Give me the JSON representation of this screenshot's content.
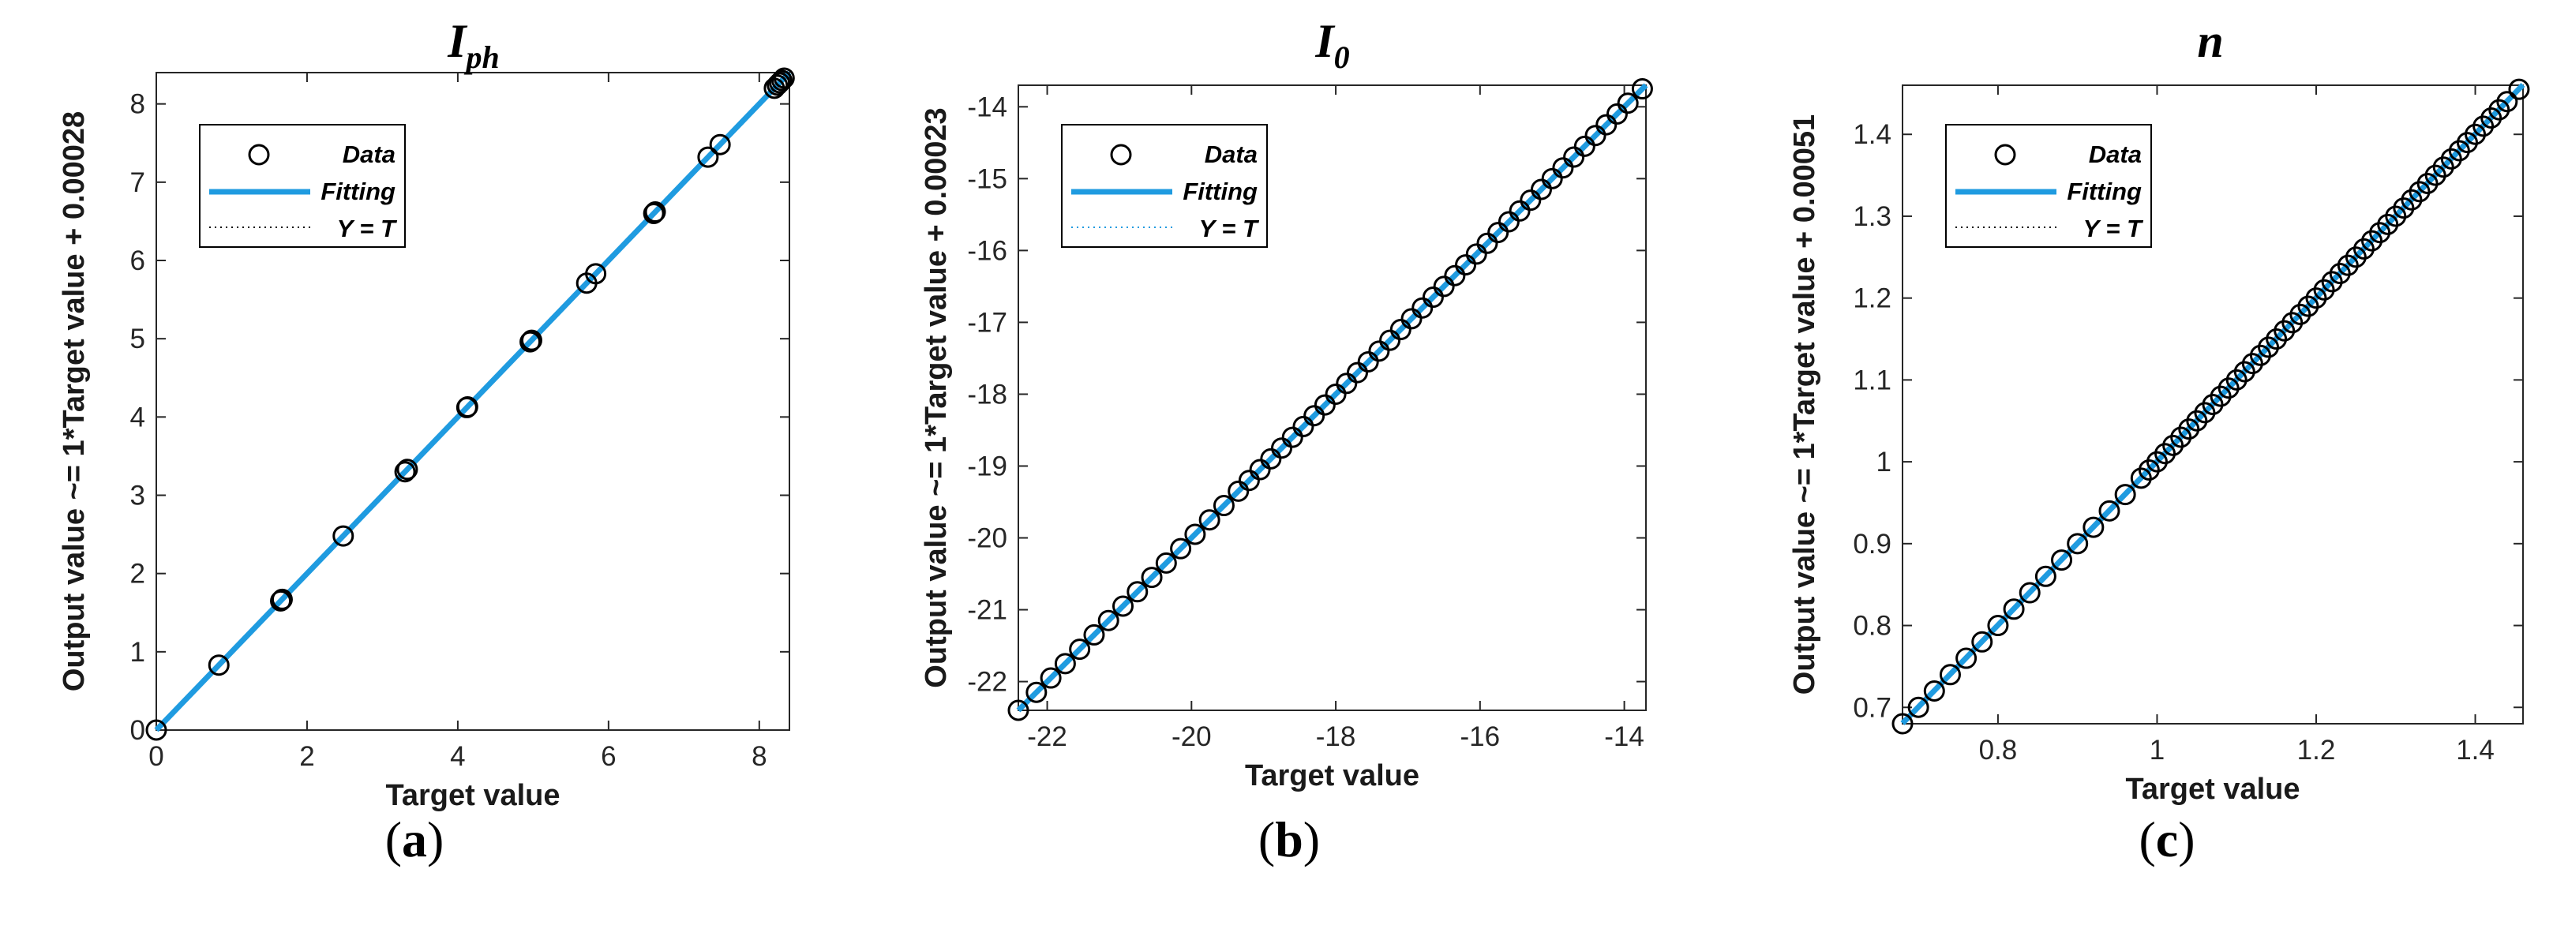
{
  "colors": {
    "fit": "#1f9be0",
    "marker": "#000000",
    "axis": "#262626"
  },
  "chart_data": [
    {
      "type": "scatter",
      "panel": "(a)",
      "panel_letter": "a",
      "title": "I",
      "title_sub": "ph",
      "xlabel": "Target value",
      "ylabel": "Output value ~= 1*Target value + 0.00028",
      "xlim": [
        0,
        8.4
      ],
      "ylim": [
        0,
        8.4
      ],
      "xticks": [
        0,
        2,
        4,
        6,
        8
      ],
      "yticks": [
        0,
        1,
        2,
        3,
        4,
        5,
        6,
        7,
        8
      ],
      "legend": [
        "Data",
        "Fitting",
        "Y = T"
      ],
      "legend_position": "top-left",
      "fit": {
        "slope": 1,
        "intercept": 0.00028
      },
      "x": [
        0,
        0.83,
        1.65,
        1.67,
        2.48,
        3.3,
        3.33,
        4.12,
        4.13,
        4.96,
        4.98,
        5.71,
        5.83,
        6.6,
        6.62,
        7.32,
        7.48,
        8.2,
        8.24,
        8.27,
        8.3,
        8.33
      ],
      "y": [
        0,
        0.83,
        1.65,
        1.67,
        2.48,
        3.3,
        3.33,
        4.12,
        4.13,
        4.96,
        4.98,
        5.71,
        5.83,
        6.6,
        6.62,
        7.32,
        7.48,
        8.2,
        8.24,
        8.27,
        8.3,
        8.33
      ]
    },
    {
      "type": "scatter",
      "panel": "(b)",
      "panel_letter": "b",
      "title": "I",
      "title_sub": "0",
      "xlabel": "Target value",
      "ylabel": "Output value ~= 1*Target value + 0.00023",
      "xlim": [
        -22.4,
        -13.7
      ],
      "ylim": [
        -22.4,
        -13.7
      ],
      "xticks": [
        -22,
        -20,
        -18,
        -16,
        -14
      ],
      "yticks": [
        -22,
        -21,
        -20,
        -19,
        -18,
        -17,
        -16,
        -15,
        -14
      ],
      "legend": [
        "Data",
        "Fitting",
        "Y = T"
      ],
      "legend_position": "top-left",
      "fit": {
        "slope": 1,
        "intercept": 0.00023
      },
      "x": [
        -22.4,
        -22.15,
        -21.95,
        -21.75,
        -21.55,
        -21.35,
        -21.15,
        -20.95,
        -20.75,
        -20.55,
        -20.35,
        -20.15,
        -19.95,
        -19.75,
        -19.55,
        -19.35,
        -19.2,
        -19.05,
        -18.9,
        -18.75,
        -18.6,
        -18.45,
        -18.3,
        -18.15,
        -18.0,
        -17.85,
        -17.7,
        -17.55,
        -17.4,
        -17.25,
        -17.1,
        -16.95,
        -16.8,
        -16.65,
        -16.5,
        -16.35,
        -16.2,
        -16.05,
        -15.9,
        -15.75,
        -15.6,
        -15.45,
        -15.3,
        -15.15,
        -15.0,
        -14.85,
        -14.7,
        -14.55,
        -14.4,
        -14.25,
        -14.1,
        -13.95,
        -13.75
      ],
      "y": [
        -22.4,
        -22.15,
        -21.95,
        -21.75,
        -21.55,
        -21.35,
        -21.15,
        -20.95,
        -20.75,
        -20.55,
        -20.35,
        -20.15,
        -19.95,
        -19.75,
        -19.55,
        -19.35,
        -19.2,
        -19.05,
        -18.9,
        -18.75,
        -18.6,
        -18.45,
        -18.3,
        -18.15,
        -18.0,
        -17.85,
        -17.7,
        -17.55,
        -17.4,
        -17.25,
        -17.1,
        -16.95,
        -16.8,
        -16.65,
        -16.5,
        -16.35,
        -16.2,
        -16.05,
        -15.9,
        -15.75,
        -15.6,
        -15.45,
        -15.3,
        -15.15,
        -15.0,
        -14.85,
        -14.7,
        -14.55,
        -14.4,
        -14.25,
        -14.1,
        -13.95,
        -13.75
      ]
    },
    {
      "type": "scatter",
      "panel": "(c)",
      "panel_letter": "c",
      "title": "n",
      "title_sub": "",
      "xlabel": "Target value",
      "ylabel": "Output value ~= 1*Target value + 0.00051",
      "xlim": [
        0.68,
        1.46
      ],
      "ylim": [
        0.68,
        1.46
      ],
      "xticks": [
        0.8,
        1,
        1.2,
        1.4
      ],
      "yticks": [
        0.7,
        0.8,
        0.9,
        1,
        1.1,
        1.2,
        1.3,
        1.4
      ],
      "ytick_labels": [
        "0.7",
        "0.8",
        "0.9",
        "1",
        "1.1",
        "1.2",
        "1.3",
        "1.4"
      ],
      "legend": [
        "Data",
        "Fitting",
        "Y = T"
      ],
      "legend_position": "top-left",
      "fit": {
        "slope": 1,
        "intercept": 0.00051
      },
      "x": [
        0.68,
        0.7,
        0.72,
        0.74,
        0.76,
        0.78,
        0.8,
        0.82,
        0.84,
        0.86,
        0.88,
        0.9,
        0.92,
        0.94,
        0.96,
        0.98,
        0.99,
        1.0,
        1.01,
        1.02,
        1.03,
        1.04,
        1.05,
        1.06,
        1.07,
        1.08,
        1.09,
        1.1,
        1.11,
        1.12,
        1.13,
        1.14,
        1.15,
        1.16,
        1.17,
        1.18,
        1.19,
        1.2,
        1.21,
        1.22,
        1.23,
        1.24,
        1.25,
        1.26,
        1.27,
        1.28,
        1.29,
        1.3,
        1.31,
        1.32,
        1.33,
        1.34,
        1.35,
        1.36,
        1.37,
        1.38,
        1.39,
        1.4,
        1.41,
        1.42,
        1.43,
        1.44,
        1.455
      ],
      "y": [
        0.68,
        0.7,
        0.72,
        0.74,
        0.76,
        0.78,
        0.8,
        0.82,
        0.84,
        0.86,
        0.88,
        0.9,
        0.92,
        0.94,
        0.96,
        0.98,
        0.99,
        1.0,
        1.01,
        1.02,
        1.03,
        1.04,
        1.05,
        1.06,
        1.07,
        1.08,
        1.09,
        1.1,
        1.11,
        1.12,
        1.13,
        1.14,
        1.15,
        1.16,
        1.17,
        1.18,
        1.19,
        1.2,
        1.21,
        1.22,
        1.23,
        1.24,
        1.25,
        1.26,
        1.27,
        1.28,
        1.29,
        1.3,
        1.31,
        1.32,
        1.33,
        1.34,
        1.35,
        1.36,
        1.37,
        1.38,
        1.39,
        1.4,
        1.41,
        1.42,
        1.43,
        1.44,
        1.455
      ]
    }
  ]
}
